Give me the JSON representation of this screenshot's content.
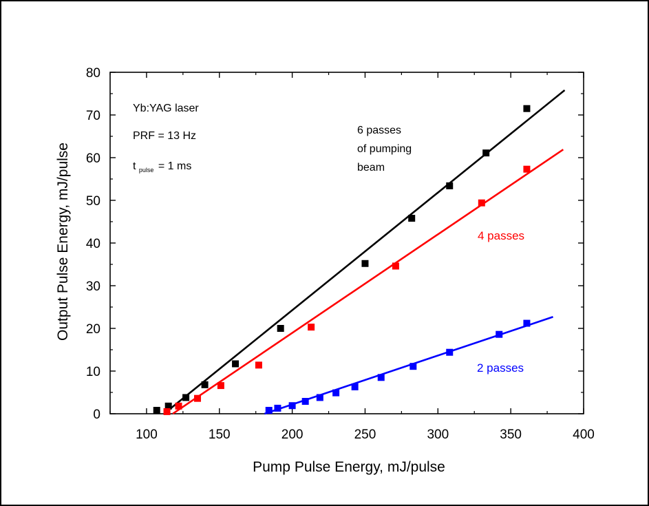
{
  "chart_data": {
    "type": "scatter",
    "xlabel": "Pump Pulse Energy, mJ/pulse",
    "ylabel": "Output Pulse Energy, mJ/pulse",
    "xlim": [
      75,
      400
    ],
    "ylim": [
      0,
      80
    ],
    "x_ticks": [
      100,
      150,
      200,
      250,
      300,
      350,
      400
    ],
    "y_ticks": [
      0,
      10,
      20,
      30,
      40,
      50,
      60,
      70,
      80
    ],
    "x_tick_labels": [
      "100",
      "150",
      "200",
      "250",
      "300",
      "350",
      "400"
    ],
    "y_tick_labels": [
      "0",
      "10",
      "20",
      "30",
      "40",
      "50",
      "60",
      "70",
      "80"
    ],
    "grid": false,
    "annotations": {
      "title_line": "Yb:YAG laser",
      "prf": "PRF = 13 Hz",
      "t_main": "t",
      "t_sub": "pulse",
      "t_rest": "= 1 ms",
      "six_line1": "6 passes",
      "six_line2": "of pumping",
      "six_line3": "beam"
    },
    "series": [
      {
        "label": "6 passes of pumping beam",
        "color": "#000000",
        "x": [
          107,
          115,
          127,
          140,
          161,
          192,
          250,
          282,
          308,
          333,
          361
        ],
        "y": [
          0.8,
          1.8,
          3.8,
          6.8,
          11.7,
          20.0,
          35.2,
          45.8,
          53.4,
          61.1,
          71.5
        ],
        "fit": {
          "x": [
            112,
            387
          ],
          "y": [
            0,
            75.8
          ]
        }
      },
      {
        "label": "4 passes",
        "color": "#ff0000",
        "x": [
          114,
          122,
          135,
          151,
          177,
          213,
          271,
          330,
          361
        ],
        "y": [
          0.5,
          1.8,
          3.6,
          6.6,
          11.4,
          20.3,
          34.6,
          49.4,
          57.3
        ],
        "fit": {
          "x": [
            118,
            386
          ],
          "y": [
            0,
            61.9
          ]
        }
      },
      {
        "label": "2 passes",
        "color": "#0000ff",
        "x": [
          184,
          190,
          200,
          209,
          219,
          230,
          243,
          261,
          283,
          308,
          342,
          361
        ],
        "y": [
          0.8,
          1.3,
          1.9,
          2.9,
          3.8,
          4.9,
          6.3,
          8.5,
          11.1,
          14.4,
          18.6,
          21.2
        ],
        "fit": {
          "x": [
            181,
            379
          ],
          "y": [
            0,
            22.7
          ]
        }
      }
    ]
  }
}
